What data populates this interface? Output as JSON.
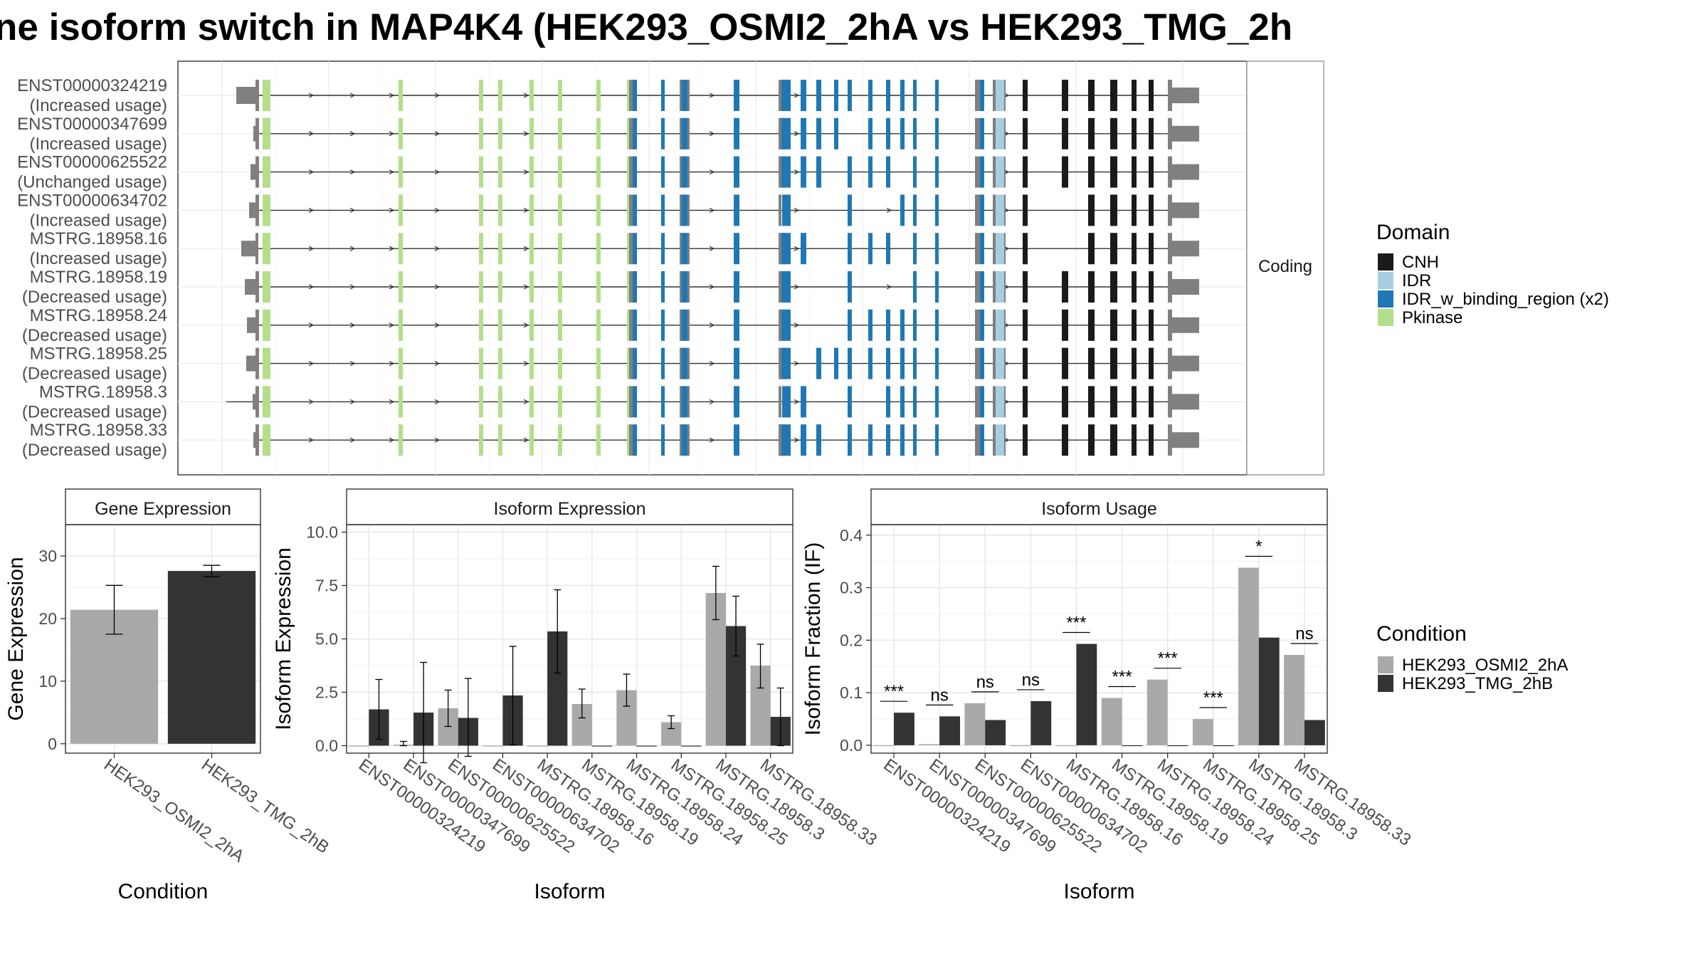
{
  "title": "ne isoform switch in MAP4K4 (HEK293_OSMI2_2hA vs HEK293_TMG_2h",
  "structure": {
    "strip_label": "Coding",
    "isoforms": [
      {
        "id": "ENST00000324219",
        "usage": "(Increased usage)"
      },
      {
        "id": "ENST00000347699",
        "usage": "(Increased usage)"
      },
      {
        "id": "ENST00000625522",
        "usage": "(Unchanged usage)"
      },
      {
        "id": "ENST00000634702",
        "usage": "(Increased usage)"
      },
      {
        "id": "MSTRG.18958.16",
        "usage": "(Increased usage)"
      },
      {
        "id": "MSTRG.18958.19",
        "usage": "(Decreased usage)"
      },
      {
        "id": "MSTRG.18958.24",
        "usage": "(Decreased usage)"
      },
      {
        "id": "MSTRG.18958.25",
        "usage": "(Decreased usage)"
      },
      {
        "id": "MSTRG.18958.3",
        "usage": "(Decreased usage)"
      },
      {
        "id": "MSTRG.18958.33",
        "usage": "(Decreased usage)"
      }
    ]
  },
  "legends": {
    "domain": {
      "title": "Domain",
      "items": [
        {
          "label": "CNH",
          "color": "#1a1a1a"
        },
        {
          "label": "IDR",
          "color": "#a6cee3"
        },
        {
          "label": "IDR_w_binding_region (x2)",
          "color": "#1f78b4"
        },
        {
          "label": "Pkinase",
          "color": "#b2df8a"
        }
      ]
    },
    "condition": {
      "title": "Condition",
      "items": [
        {
          "label": "HEK293_OSMI2_2hA",
          "color": "#a9a9a9"
        },
        {
          "label": "HEK293_TMG_2hB",
          "color": "#333333"
        }
      ]
    }
  },
  "chart_data": [
    {
      "type": "bar",
      "strip": "Gene Expression",
      "xlabel": "Condition",
      "ylabel": "Gene Expression",
      "ylim": [
        -1.5,
        35
      ],
      "yticks": [
        0,
        10,
        20,
        30
      ],
      "categories": [
        "HEK293_OSMI2_2hA",
        "HEK293_TMG_2hB"
      ],
      "values": [
        21.4,
        27.6
      ],
      "errors": [
        [
          17.5,
          25.3
        ],
        [
          26.7,
          28.5
        ]
      ]
    },
    {
      "type": "bar",
      "strip": "Isoform Expression",
      "xlabel": "Isoform",
      "ylabel": "Isoform Expression",
      "ylim": [
        -0.35,
        10.35
      ],
      "yticks": [
        0,
        2.5,
        5,
        7.5,
        10
      ],
      "ytick_labels": [
        "0.0",
        "2.5",
        "5.0",
        "7.5",
        "10.0"
      ],
      "categories": [
        "ENST00000324219",
        "ENST00000347699",
        "ENST00000625522",
        "ENST00000634702",
        "MSTRG.18958.16",
        "MSTRG.18958.19",
        "MSTRG.18958.24",
        "MSTRG.18958.25",
        "MSTRG.18958.3",
        "MSTRG.18958.33"
      ],
      "series": [
        {
          "name": "HEK293_OSMI2_2hA",
          "values": [
            0.0,
            0.05,
            1.75,
            0.0,
            0.0,
            1.95,
            2.6,
            1.1,
            7.15,
            3.75
          ],
          "errors": [
            null,
            [
              0.0,
              0.2
            ],
            [
              0.9,
              2.6
            ],
            null,
            null,
            [
              1.3,
              2.65
            ],
            [
              1.85,
              3.35
            ],
            [
              0.8,
              1.4
            ],
            [
              5.9,
              8.4
            ],
            [
              2.7,
              4.75
            ]
          ]
        },
        {
          "name": "HEK293_TMG_2hB",
          "values": [
            1.7,
            1.55,
            1.3,
            2.35,
            5.35,
            0.0,
            0.0,
            0.0,
            5.6,
            1.35
          ],
          "errors": [
            [
              0.3,
              3.1
            ],
            [
              -0.8,
              3.9
            ],
            [
              -0.5,
              3.15
            ],
            [
              0.05,
              4.65
            ],
            [
              3.4,
              7.3
            ],
            null,
            null,
            null,
            [
              4.2,
              7.0
            ],
            [
              0.0,
              2.7
            ]
          ]
        }
      ]
    },
    {
      "type": "bar",
      "strip": "Isoform Usage",
      "xlabel": "Isoform",
      "ylabel": "Isoform Fraction (IF)",
      "ylim": [
        -0.015,
        0.42
      ],
      "yticks": [
        0,
        0.1,
        0.2,
        0.3,
        0.4
      ],
      "ytick_labels": [
        "0.0",
        "0.1",
        "0.2",
        "0.3",
        "0.4"
      ],
      "categories": [
        "ENST00000324219",
        "ENST00000347699",
        "ENST00000625522",
        "ENST00000634702",
        "MSTRG.18958.16",
        "MSTRG.18958.19",
        "MSTRG.18958.24",
        "MSTRG.18958.25",
        "MSTRG.18958.3",
        "MSTRG.18958.33"
      ],
      "series": [
        {
          "name": "HEK293_OSMI2_2hA",
          "values": [
            0.0,
            0.002,
            0.08,
            0.0,
            0.0,
            0.09,
            0.125,
            0.05,
            0.338,
            0.172
          ]
        },
        {
          "name": "HEK293_TMG_2hB",
          "values": [
            0.062,
            0.055,
            0.048,
            0.084,
            0.193,
            0.0,
            0.0,
            0.0,
            0.205,
            0.048
          ]
        }
      ],
      "significance": [
        "***",
        "ns",
        "ns",
        "ns",
        "***",
        "***",
        "***",
        "***",
        "*",
        "ns"
      ]
    }
  ]
}
